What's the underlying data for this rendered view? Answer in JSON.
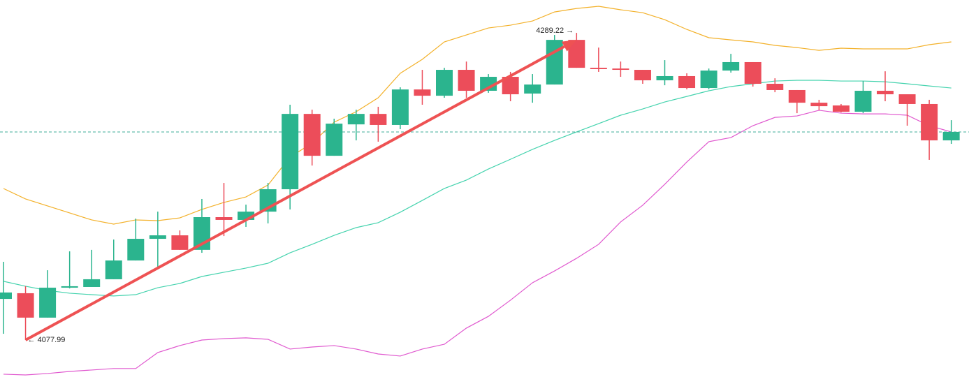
{
  "chart_data": {
    "type": "candlestick",
    "up_color": "#2bb48e",
    "down_color": "#ec4d5a",
    "open": [
      4106.3,
      4110.2,
      4093.4,
      4114.0,
      4114.5,
      4119.8,
      4132.7,
      4147.6,
      4150.0,
      4140.0,
      4162.5,
      4160.6,
      4166.3,
      4181.7,
      4233.5,
      4204.7,
      4226.3,
      4233.5,
      4225.9,
      4250.3,
      4246.0,
      4263.8,
      4249.4,
      4259.0,
      4247.5,
      4253.7,
      4284.4,
      4265.2,
      4264.7,
      4263.8,
      4256.6,
      4259.5,
      4251.3,
      4263.3,
      4269.1,
      4254.2,
      4249.9,
      4241.2,
      4239.3,
      4235.0,
      4249.4,
      4247.0,
      4240.3,
      4215.3
    ],
    "high": [
      4131.8,
      4115.0,
      4126.0,
      4139.0,
      4140.0,
      4147.1,
      4161.5,
      4166.3,
      4153.4,
      4175.0,
      4186.0,
      4171.1,
      4186.0,
      4239.8,
      4236.4,
      4230.2,
      4236.4,
      4238.4,
      4251.8,
      4263.8,
      4265.2,
      4269.5,
      4260.9,
      4262.4,
      4260.9,
      4287.8,
      4289.22,
      4279.1,
      4269.5,
      4263.8,
      4270.5,
      4261.4,
      4264.7,
      4274.8,
      4269.1,
      4258.0,
      4249.9,
      4243.2,
      4240.3,
      4256.1,
      4262.8,
      4247.0,
      4243.2,
      4229.2
    ],
    "low": [
      4082.3,
      4077.99,
      4093.4,
      4113.5,
      4114.5,
      4119.8,
      4132.7,
      4127.0,
      4140.0,
      4138.0,
      4149.5,
      4155.8,
      4158.2,
      4167.8,
      4198.0,
      4204.7,
      4215.3,
      4214.4,
      4223.0,
      4239.8,
      4244.6,
      4244.6,
      4248.0,
      4242.2,
      4241.2,
      4253.7,
      4265.2,
      4262.4,
      4259.0,
      4254.2,
      4253.2,
      4250.4,
      4250.4,
      4261.9,
      4252.3,
      4248.4,
      4234.0,
      4236.0,
      4234.5,
      4234.0,
      4242.2,
      4225.4,
      4201.9,
      4212.9
    ],
    "close": [
      4110.7,
      4093.4,
      4114.0,
      4115.0,
      4119.8,
      4132.7,
      4147.6,
      4150.0,
      4140.0,
      4162.5,
      4160.6,
      4166.3,
      4181.7,
      4233.5,
      4204.7,
      4226.8,
      4233.5,
      4225.9,
      4250.3,
      4246.0,
      4263.8,
      4249.4,
      4259.0,
      4247.0,
      4253.7,
      4284.4,
      4265.2,
      4264.3,
      4263.8,
      4256.6,
      4259.5,
      4251.3,
      4263.3,
      4269.1,
      4254.2,
      4249.9,
      4241.2,
      4238.8,
      4235.0,
      4249.4,
      4247.0,
      4240.3,
      4215.3,
      4221.1
    ],
    "bands": [
      {
        "color": "#f3b12a",
        "values": [
          4182.2,
          4175.0,
          4170.2,
          4165.4,
          4160.6,
          4157.7,
          4160.6,
          4160.1,
          4162.0,
          4167.8,
          4172.6,
          4176.4,
          4184.6,
          4203.8,
          4213.4,
          4227.8,
          4235.0,
          4244.6,
          4261.4,
          4271.0,
          4283.0,
          4287.8,
          4292.6,
          4294.5,
          4297.4,
          4303.6,
          4306.0,
          4307.5,
          4305.1,
          4303.1,
          4298.3,
          4291.6,
          4285.9,
          4284.4,
          4283.0,
          4280.6,
          4279.1,
          4277.2,
          4278.7,
          4278.2,
          4278.2,
          4278.2,
          4281.1,
          4283.0
        ]
      },
      {
        "color": "#45d3ae",
        "values": [
          4118.4,
          4115.0,
          4112.1,
          4110.2,
          4109.2,
          4108.3,
          4109.2,
          4114.0,
          4116.9,
          4121.7,
          4124.6,
          4127.5,
          4130.8,
          4138.0,
          4143.8,
          4150.0,
          4155.3,
          4158.7,
          4165.9,
          4174.0,
          4182.2,
          4188.0,
          4195.6,
          4202.3,
          4209.1,
          4215.3,
          4221.1,
          4226.8,
          4232.6,
          4236.9,
          4241.7,
          4245.5,
          4249.4,
          4252.3,
          4254.2,
          4256.1,
          4256.6,
          4256.6,
          4256.1,
          4256.1,
          4255.6,
          4254.2,
          4252.7,
          4251.3
        ]
      },
      {
        "color": "#e059cf",
        "values": [
          4054.5,
          4054.0,
          4055.0,
          4056.4,
          4057.4,
          4058.4,
          4058.4,
          4069.4,
          4074.2,
          4078.0,
          4079.0,
          4079.5,
          4078.5,
          4071.8,
          4073.2,
          4074.2,
          4071.8,
          4068.4,
          4067.0,
          4071.8,
          4075.1,
          4086.2,
          4094.3,
          4105.4,
          4117.4,
          4125.5,
          4134.2,
          4143.8,
          4159.2,
          4170.7,
          4185.1,
          4200.4,
          4214.4,
          4217.2,
          4225.4,
          4231.1,
          4232.1,
          4236.0,
          4234.0,
          4233.5,
          4233.5,
          4232.6,
          4225.4,
          4221.1
        ]
      }
    ],
    "last_price_line": true,
    "last_price_color": "#3fae98",
    "arrow": {
      "color": "#ee5253",
      "from_label": "← 4077.99",
      "to_label": "4289.22 →"
    }
  }
}
